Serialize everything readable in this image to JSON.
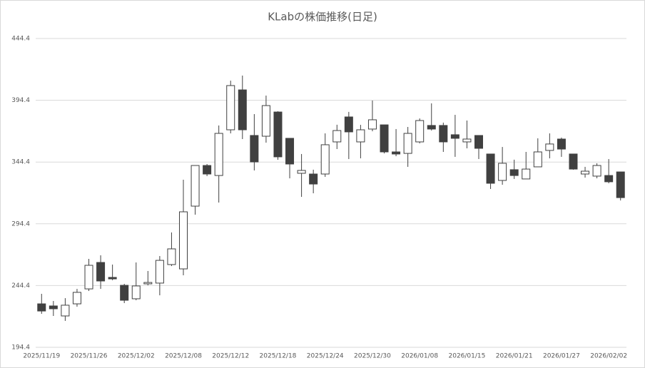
{
  "chart_data": {
    "type": "candlestick",
    "title": "KLabの株価推移(日足)",
    "categories": [
      "2025/11/19",
      null,
      null,
      null,
      "2025/11/26",
      null,
      null,
      null,
      "2025/12/02",
      null,
      null,
      null,
      "2025/12/08",
      null,
      null,
      null,
      "2025/12/12",
      null,
      null,
      null,
      "2025/12/18",
      null,
      null,
      null,
      "2025/12/24",
      null,
      null,
      null,
      "2025/12/30",
      null,
      null,
      null,
      "2026/01/08",
      null,
      null,
      null,
      "2026/01/15",
      null,
      null,
      null,
      "2026/01/21",
      null,
      null,
      null,
      "2026/01/27",
      null,
      null,
      null,
      "2026/02/02",
      null
    ],
    "open": [
      229.6,
      227.9,
      219.8,
      229.6,
      241.7,
      263.1,
      251.0,
      244.6,
      233.7,
      245.8,
      246.4,
      261.4,
      257.9,
      308.7,
      341.6,
      333.5,
      370.5,
      402.8,
      365.9,
      365.3,
      384.9,
      363.6,
      335.3,
      334.7,
      334.7,
      360.7,
      380.9,
      360.7,
      371.1,
      374.5,
      352.6,
      351.4,
      360.7,
      374.0,
      374.0,
      366.5,
      360.7,
      365.9,
      350.9,
      329.5,
      338.2,
      330.7,
      340.5,
      353.8,
      363.0,
      350.9,
      334.7,
      333.0,
      333.5,
      336.4
    ],
    "high": [
      237.7,
      231.9,
      234.2,
      241.7,
      266.0,
      268.9,
      261.4,
      245.8,
      263.1,
      256.2,
      268.3,
      287.4,
      330.1,
      341.6,
      342.8,
      374.0,
      410.3,
      414.4,
      383.2,
      398.2,
      385.5,
      363.6,
      350.9,
      338.2,
      367.6,
      374.6,
      385.0,
      374.5,
      394.2,
      374.5,
      371.1,
      372.8,
      379.7,
      391.9,
      376.3,
      382.6,
      378.0,
      365.9,
      350.9,
      356.6,
      346.3,
      352.6,
      363.6,
      367.6,
      364.2,
      350.9,
      340.5,
      343.4,
      346.8,
      336.4
    ],
    "low": [
      221.5,
      219.8,
      215.8,
      227.3,
      240.0,
      241.7,
      248.7,
      230.2,
      232.5,
      244.6,
      236.5,
      260.2,
      252.7,
      301.8,
      333.0,
      311.6,
      367.6,
      363.0,
      337.6,
      360.1,
      346.2,
      331.2,
      316.2,
      319.1,
      332.4,
      354.9,
      346.8,
      347.4,
      369.3,
      351.4,
      349.1,
      340.5,
      359.5,
      369.9,
      352.6,
      348.6,
      355.5,
      346.8,
      322.6,
      326.0,
      330.7,
      330.7,
      340.5,
      347.4,
      348.6,
      338.2,
      331.8,
      331.2,
      327.2,
      313.3
    ],
    "close": [
      223.8,
      225.6,
      228.5,
      238.9,
      260.8,
      248.1,
      249.8,
      232.5,
      244.1,
      246.9,
      264.8,
      274.1,
      304.1,
      341.6,
      334.7,
      367.6,
      406.3,
      370.5,
      344.5,
      390.1,
      348.6,
      342.8,
      337.6,
      326.6,
      358.4,
      369.9,
      368.8,
      370.5,
      378.6,
      352.6,
      350.9,
      367.6,
      378.0,
      371.1,
      360.7,
      363.6,
      363.0,
      355.5,
      327.2,
      343.4,
      333.5,
      338.7,
      352.6,
      359.0,
      354.9,
      338.7,
      337.0,
      341.6,
      328.4,
      315.6
    ],
    "up_color": "#ffffff",
    "down_color": "#404040",
    "edge_color": "#404040",
    "ylim": [
      194.4,
      444.4
    ],
    "yticks": [
      194.4,
      244.4,
      294.4,
      344.4,
      394.4,
      444.4
    ],
    "grid": true
  }
}
